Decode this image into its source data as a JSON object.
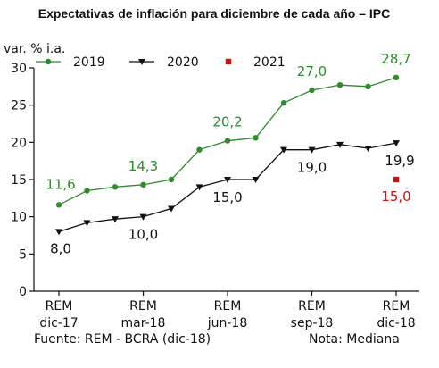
{
  "chart_data": {
    "type": "line",
    "title": "Expectativas de inflación para diciembre de cada año – IPC",
    "ylabel": "var. % i.a.",
    "ylim": [
      0,
      30
    ],
    "yticks": [
      0,
      5,
      10,
      15,
      20,
      25,
      30
    ],
    "x": [
      0,
      1,
      2,
      3,
      4,
      5,
      6,
      7,
      8,
      9,
      10,
      11,
      12
    ],
    "x_tick_positions": [
      0,
      3,
      6,
      9,
      12
    ],
    "x_tick_labels": [
      [
        "REM",
        "dic-17"
      ],
      [
        "REM",
        "mar-18"
      ],
      [
        "REM",
        "jun-18"
      ],
      [
        "REM",
        "sep-18"
      ],
      [
        "REM",
        "dic-18"
      ]
    ],
    "grid": false,
    "legend_position": "top",
    "series": [
      {
        "name": "2019",
        "color": "#2e8b2e",
        "marker": "circle",
        "x": [
          0,
          1,
          2,
          3,
          4,
          5,
          6,
          7,
          8,
          9,
          10,
          11,
          12
        ],
        "values": [
          11.6,
          13.5,
          14.0,
          14.3,
          15.0,
          19.0,
          20.2,
          20.6,
          25.3,
          27.0,
          27.7,
          27.5,
          28.7
        ]
      },
      {
        "name": "2020",
        "color": "#111111",
        "marker": "triangle-down",
        "x": [
          0,
          1,
          2,
          3,
          4,
          5,
          6,
          7,
          8,
          9,
          10,
          11,
          12
        ],
        "values": [
          8.0,
          9.2,
          9.7,
          10.0,
          11.1,
          14.0,
          15.0,
          15.0,
          19.0,
          19.0,
          19.7,
          19.2,
          19.9
        ]
      },
      {
        "name": "2021",
        "color": "#cc1111",
        "marker": "square",
        "x": [
          12
        ],
        "values": [
          15.0
        ]
      }
    ],
    "annotations": [
      {
        "series": 0,
        "x": 0,
        "text": "11,6"
      },
      {
        "series": 0,
        "x": 3,
        "text": "14,3"
      },
      {
        "series": 0,
        "x": 6,
        "text": "20,2"
      },
      {
        "series": 0,
        "x": 9,
        "text": "27,0"
      },
      {
        "series": 0,
        "x": 12,
        "text": "28,7"
      },
      {
        "series": 1,
        "x": 0,
        "text": "8,0"
      },
      {
        "series": 1,
        "x": 3,
        "text": "10,0"
      },
      {
        "series": 1,
        "x": 6,
        "text": "15,0"
      },
      {
        "series": 1,
        "x": 9,
        "text": "19,0"
      },
      {
        "series": 1,
        "x": 12,
        "text": "19,9"
      },
      {
        "series": 2,
        "x": 12,
        "text": "15,0"
      }
    ],
    "footer_left": "Fuente: REM - BCRA (dic-18)",
    "footer_right": "Nota: Mediana"
  }
}
